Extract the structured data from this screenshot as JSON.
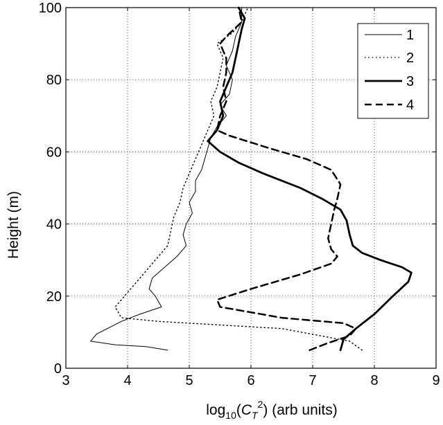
{
  "chart_data": {
    "type": "line",
    "title": "",
    "xlabel": {
      "prefix": "log",
      "sub": "10",
      "open": "(",
      "var": "C",
      "var_sub": "T",
      "sup": "2",
      "suffix": ") (arb units)"
    },
    "ylabel": "Height (m)",
    "xlim": [
      3,
      9
    ],
    "ylim": [
      0,
      100
    ],
    "xticks": [
      3,
      4,
      5,
      6,
      7,
      8,
      9
    ],
    "yticks": [
      0,
      20,
      40,
      60,
      80,
      100
    ],
    "xtick_labels": [
      "3",
      "4",
      "5",
      "6",
      "7",
      "8",
      "9"
    ],
    "ytick_labels": [
      "0",
      "20",
      "40",
      "60",
      "80",
      "100"
    ],
    "grid": true,
    "legend_position": "top-right",
    "series": [
      {
        "name": "1",
        "style": "solid-thin",
        "color": "#000000",
        "points": [
          [
            4.65,
            5
          ],
          [
            4.3,
            6
          ],
          [
            3.8,
            6.5
          ],
          [
            3.4,
            7.5
          ],
          [
            3.5,
            9.5
          ],
          [
            3.9,
            13
          ],
          [
            4.2,
            15
          ],
          [
            4.55,
            17
          ],
          [
            4.45,
            20
          ],
          [
            4.35,
            22
          ],
          [
            4.4,
            25
          ],
          [
            4.6,
            28
          ],
          [
            4.8,
            31
          ],
          [
            4.95,
            34
          ],
          [
            4.9,
            37
          ],
          [
            4.95,
            40
          ],
          [
            5.05,
            43
          ],
          [
            5.0,
            46
          ],
          [
            5.1,
            49
          ],
          [
            5.1,
            52
          ],
          [
            5.2,
            55
          ],
          [
            5.25,
            58
          ],
          [
            5.3,
            61
          ],
          [
            5.35,
            64
          ],
          [
            5.45,
            67
          ],
          [
            5.6,
            70
          ],
          [
            5.5,
            73
          ],
          [
            5.65,
            76
          ],
          [
            5.7,
            80
          ],
          [
            5.6,
            84
          ],
          [
            5.7,
            88
          ],
          [
            5.75,
            92
          ],
          [
            5.85,
            96
          ],
          [
            5.85,
            100
          ]
        ]
      },
      {
        "name": "2",
        "style": "dotted",
        "color": "#000000",
        "points": [
          [
            7.8,
            5
          ],
          [
            7.6,
            7.5
          ],
          [
            6.5,
            11
          ],
          [
            4.5,
            13
          ],
          [
            3.9,
            14
          ],
          [
            3.8,
            17
          ],
          [
            4.0,
            21
          ],
          [
            4.2,
            25
          ],
          [
            4.35,
            28
          ],
          [
            4.5,
            31
          ],
          [
            4.65,
            34
          ],
          [
            4.7,
            38
          ],
          [
            4.75,
            42
          ],
          [
            4.85,
            46
          ],
          [
            4.9,
            50
          ],
          [
            5.0,
            54
          ],
          [
            5.1,
            58
          ],
          [
            5.2,
            62
          ],
          [
            5.3,
            66
          ],
          [
            5.4,
            70
          ],
          [
            5.35,
            74
          ],
          [
            5.45,
            78
          ],
          [
            5.5,
            82
          ],
          [
            5.55,
            86
          ],
          [
            5.45,
            90
          ],
          [
            5.7,
            93
          ],
          [
            5.85,
            96
          ],
          [
            5.95,
            100
          ]
        ]
      },
      {
        "name": "3",
        "style": "solid-thick",
        "color": "#000000",
        "points": [
          [
            7.45,
            5
          ],
          [
            7.5,
            8
          ],
          [
            7.7,
            11
          ],
          [
            8.0,
            15
          ],
          [
            8.3,
            20
          ],
          [
            8.55,
            24
          ],
          [
            8.6,
            26.5
          ],
          [
            8.45,
            28
          ],
          [
            8.1,
            30
          ],
          [
            7.8,
            32
          ],
          [
            7.65,
            34
          ],
          [
            7.6,
            37
          ],
          [
            7.55,
            41
          ],
          [
            7.45,
            44
          ],
          [
            7.15,
            47
          ],
          [
            6.8,
            50
          ],
          [
            6.2,
            54
          ],
          [
            5.8,
            57
          ],
          [
            5.5,
            60
          ],
          [
            5.3,
            63
          ],
          [
            5.45,
            66
          ],
          [
            5.55,
            70
          ],
          [
            5.5,
            74
          ],
          [
            5.6,
            78
          ],
          [
            5.7,
            82
          ],
          [
            5.75,
            86
          ],
          [
            5.8,
            90
          ],
          [
            5.85,
            94
          ],
          [
            5.9,
            97
          ],
          [
            5.8,
            100
          ]
        ]
      },
      {
        "name": "4",
        "style": "dashed",
        "color": "#000000",
        "points": [
          [
            6.95,
            5
          ],
          [
            7.25,
            7
          ],
          [
            7.6,
            9
          ],
          [
            7.7,
            11
          ],
          [
            7.5,
            12.5
          ],
          [
            6.5,
            14
          ],
          [
            5.5,
            17
          ],
          [
            5.45,
            19
          ],
          [
            6.0,
            22
          ],
          [
            6.8,
            26
          ],
          [
            7.3,
            29
          ],
          [
            7.4,
            31
          ],
          [
            7.3,
            33
          ],
          [
            7.25,
            36
          ],
          [
            7.3,
            40
          ],
          [
            7.35,
            44
          ],
          [
            7.4,
            47
          ],
          [
            7.45,
            51
          ],
          [
            7.3,
            55
          ],
          [
            6.9,
            58
          ],
          [
            6.3,
            61
          ],
          [
            5.65,
            64.5
          ],
          [
            5.45,
            66
          ],
          [
            5.5,
            70
          ],
          [
            5.6,
            74
          ],
          [
            5.55,
            78
          ],
          [
            5.6,
            82
          ],
          [
            5.6,
            86
          ],
          [
            5.5,
            90
          ],
          [
            5.6,
            92
          ],
          [
            5.85,
            96
          ],
          [
            5.8,
            100
          ]
        ]
      }
    ]
  }
}
